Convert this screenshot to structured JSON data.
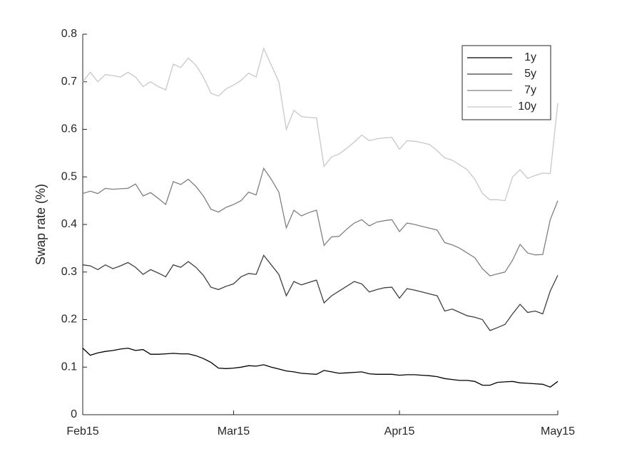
{
  "chart_data": {
    "type": "line",
    "y_label": "Swap rate (%)",
    "categories": [
      "Feb15",
      null,
      null,
      null,
      null,
      null,
      null,
      null,
      null,
      null,
      null,
      null,
      null,
      null,
      null,
      null,
      null,
      null,
      null,
      null,
      "Mar15",
      null,
      null,
      null,
      null,
      null,
      null,
      null,
      null,
      null,
      null,
      null,
      null,
      null,
      null,
      null,
      null,
      null,
      null,
      null,
      null,
      null,
      "Apr15",
      null,
      null,
      null,
      null,
      null,
      null,
      null,
      null,
      null,
      null,
      null,
      null,
      null,
      null,
      null,
      null,
      null,
      null,
      null,
      null,
      "May15"
    ],
    "ylim": [
      0,
      0.8
    ],
    "yticks": [
      0,
      0.1,
      0.2,
      0.3,
      0.4,
      0.5,
      0.6,
      0.7,
      0.8
    ],
    "grid": false,
    "legend": "upper-right",
    "series": [
      {
        "name": "1y",
        "color": "#000000",
        "values": [
          0.14,
          0.125,
          0.13,
          0.133,
          0.135,
          0.138,
          0.14,
          0.135,
          0.137,
          0.127,
          0.127,
          0.128,
          0.129,
          0.128,
          0.128,
          0.124,
          0.118,
          0.11,
          0.098,
          0.097,
          0.098,
          0.1,
          0.103,
          0.102,
          0.105,
          0.1,
          0.096,
          0.092,
          0.09,
          0.087,
          0.086,
          0.085,
          0.093,
          0.09,
          0.087,
          0.088,
          0.089,
          0.09,
          0.086,
          0.085,
          0.085,
          0.085,
          0.083,
          0.084,
          0.084,
          0.083,
          0.082,
          0.08,
          0.076,
          0.074,
          0.072,
          0.072,
          0.07,
          0.062,
          0.062,
          0.068,
          0.069,
          0.07,
          0.067,
          0.066,
          0.065,
          0.064,
          0.058,
          0.07
        ]
      },
      {
        "name": "5y",
        "color": "#404040",
        "values": [
          0.315,
          0.313,
          0.305,
          0.315,
          0.307,
          0.313,
          0.32,
          0.31,
          0.295,
          0.305,
          0.298,
          0.29,
          0.315,
          0.31,
          0.322,
          0.31,
          0.293,
          0.268,
          0.263,
          0.27,
          0.275,
          0.29,
          0.297,
          0.295,
          0.335,
          0.315,
          0.295,
          0.25,
          0.28,
          0.273,
          0.278,
          0.283,
          0.235,
          0.25,
          0.26,
          0.27,
          0.28,
          0.275,
          0.258,
          0.263,
          0.267,
          0.268,
          0.245,
          0.265,
          0.262,
          0.258,
          0.254,
          0.25,
          0.218,
          0.222,
          0.215,
          0.208,
          0.205,
          0.2,
          0.177,
          0.183,
          0.19,
          0.212,
          0.232,
          0.215,
          0.218,
          0.212,
          0.26,
          0.293
        ]
      },
      {
        "name": "7y",
        "color": "#808080",
        "values": [
          0.465,
          0.47,
          0.465,
          0.476,
          0.474,
          0.475,
          0.476,
          0.485,
          0.46,
          0.467,
          0.455,
          0.442,
          0.49,
          0.484,
          0.495,
          0.48,
          0.46,
          0.432,
          0.426,
          0.436,
          0.442,
          0.45,
          0.468,
          0.462,
          0.518,
          0.495,
          0.468,
          0.393,
          0.43,
          0.418,
          0.425,
          0.43,
          0.356,
          0.374,
          0.375,
          0.39,
          0.403,
          0.41,
          0.397,
          0.405,
          0.408,
          0.41,
          0.385,
          0.403,
          0.4,
          0.396,
          0.392,
          0.388,
          0.362,
          0.357,
          0.35,
          0.34,
          0.33,
          0.307,
          0.292,
          0.296,
          0.3,
          0.325,
          0.358,
          0.34,
          0.336,
          0.337,
          0.41,
          0.45
        ]
      },
      {
        "name": "10y",
        "color": "#c8c8c8",
        "values": [
          0.7,
          0.72,
          0.7,
          0.715,
          0.713,
          0.71,
          0.72,
          0.71,
          0.69,
          0.7,
          0.69,
          0.683,
          0.737,
          0.73,
          0.75,
          0.735,
          0.71,
          0.676,
          0.67,
          0.685,
          0.693,
          0.703,
          0.718,
          0.71,
          0.77,
          0.735,
          0.7,
          0.6,
          0.64,
          0.627,
          0.625,
          0.624,
          0.522,
          0.542,
          0.548,
          0.56,
          0.573,
          0.588,
          0.576,
          0.58,
          0.582,
          0.583,
          0.558,
          0.576,
          0.575,
          0.572,
          0.568,
          0.555,
          0.54,
          0.535,
          0.525,
          0.515,
          0.495,
          0.465,
          0.452,
          0.452,
          0.45,
          0.5,
          0.515,
          0.497,
          0.503,
          0.508,
          0.507,
          0.655
        ]
      }
    ]
  }
}
